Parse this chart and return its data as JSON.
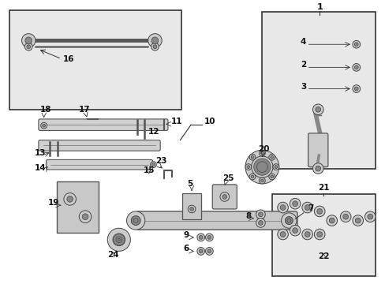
{
  "bg_color": "#ffffff",
  "diagram_bg": "#e8e8e8",
  "line_color": "#333333",
  "dark": "#444444",
  "mid": "#888888",
  "light": "#cccccc",
  "leaf_bg": "#d0d0d0"
}
